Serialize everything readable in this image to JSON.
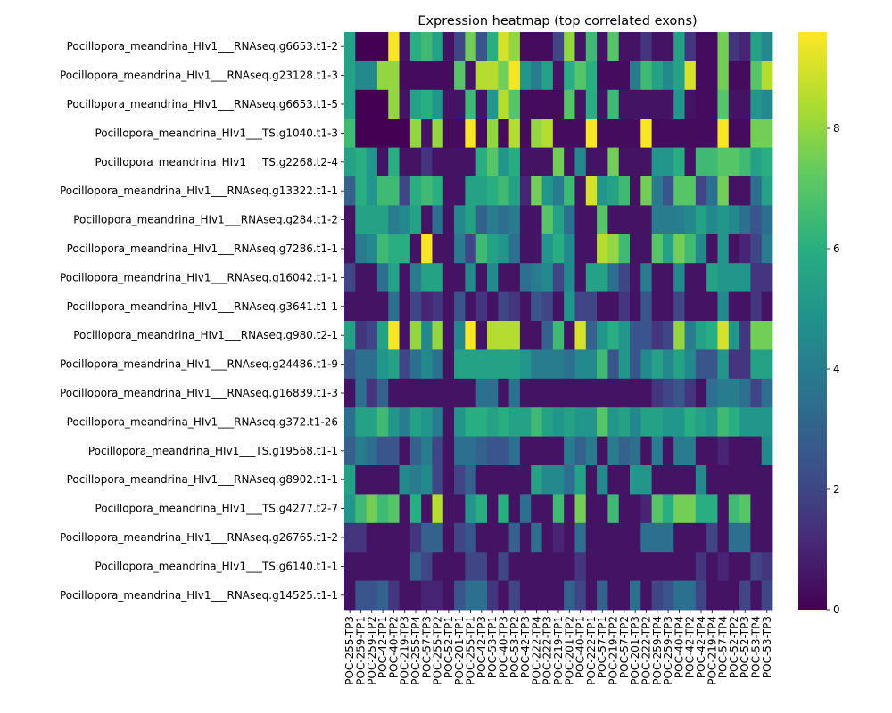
{
  "chart_data": {
    "type": "heatmap",
    "title": "Expression heatmap (top correlated exons)",
    "xlabel": "",
    "ylabel": "",
    "colormap": "viridis",
    "value_range": [
      0,
      9.6
    ],
    "colorbar_ticks": [
      0,
      2,
      4,
      6,
      8
    ],
    "x_ticks_shown": [
      "POC-255-TP3",
      "POC-259-TP1",
      "POC-259-TP2",
      "POC-42-TP1",
      "POC-40-TP2",
      "POC-219-TP3",
      "POC-255-TP4",
      "POC-57-TP3",
      "POC-255-TP2",
      "POC-52-TP1",
      "POC-201-TP1",
      "POC-255-TP1",
      "POC-42-TP3",
      "POC-53-TP1",
      "POC-40-TP3",
      "POC-53-TP2",
      "POC-42-TP3",
      "POC-222-TP4",
      "POC-222-TP3",
      "POC-219-TP1",
      "POC-201-TP2",
      "POC-40-TP1",
      "POC-222-TP1",
      "POC-57-TP1",
      "POC-219-TP2",
      "POC-57-TP2",
      "POC-201-TP3",
      "POC-222-TP2",
      "POC-259-TP4",
      "POC-259-TP3",
      "POC-40-TP4",
      "POC-42-TP2",
      "POC-42-TP4",
      "POC-219-TP4",
      "POC-57-TP4",
      "POC-52-TP2",
      "POC-52-TP3",
      "POC-53-TP4",
      "POC-53-TP3"
    ],
    "rows": [
      "Pocillopora_meandrina_HIv1___RNAseq.g6653.t1-2",
      "Pocillopora_meandrina_HIv1___RNAseq.g23128.t1-3",
      "Pocillopora_meandrina_HIv1___RNAseq.g6653.t1-5",
      "Pocillopora_meandrina_HIv1___TS.g1040.t1-3",
      "Pocillopora_meandrina_HIv1___TS.g2268.t2-4",
      "Pocillopora_meandrina_HIv1___RNAseq.g13322.t1-1",
      "Pocillopora_meandrina_HIv1___RNAseq.g284.t1-2",
      "Pocillopora_meandrina_HIv1___RNAseq.g7286.t1-1",
      "Pocillopora_meandrina_HIv1___RNAseq.g16042.t1-1",
      "Pocillopora_meandrina_HIv1___RNAseq.g3641.t1-1",
      "Pocillopora_meandrina_HIv1___RNAseq.g980.t2-1",
      "Pocillopora_meandrina_HIv1___RNAseq.g24486.t1-9",
      "Pocillopora_meandrina_HIv1___RNAseq.g16839.t1-3",
      "Pocillopora_meandrina_HIv1___RNAseq.g372.t1-26",
      "Pocillopora_meandrina_HIv1___TS.g19568.t1-1",
      "Pocillopora_meandrina_HIv1___RNAseq.g8902.t1-1",
      "Pocillopora_meandrina_HIv1___TS.g4277.t2-7",
      "Pocillopora_meandrina_HIv1___RNAseq.g26765.t1-2",
      "Pocillopora_meandrina_HIv1___TS.g6140.t1-1",
      "Pocillopora_meandrina_HIv1___RNAseq.g14525.t1-1"
    ],
    "values": [
      [
        5.5,
        0.0,
        0.0,
        0.0,
        9.5,
        0.5,
        6.0,
        6.5,
        5.5,
        0.5,
        2.0,
        7.5,
        2.5,
        6.0,
        9.0,
        8.0,
        0.3,
        0.3,
        0.3,
        2.0,
        8.0,
        0.5,
        6.5,
        0.5,
        7.0,
        0.5,
        0.5,
        1.5,
        0.5,
        0.5,
        5.5,
        1.5,
        0.3,
        0.3,
        7.5,
        1.5,
        1.0,
        5.5,
        4.5
      ],
      [
        5.5,
        4.5,
        4.5,
        8.0,
        8.0,
        0.3,
        0.3,
        0.3,
        0.3,
        0.3,
        7.0,
        0.5,
        8.5,
        8.5,
        7.5,
        9.5,
        5.0,
        4.0,
        5.5,
        0.5,
        6.0,
        7.0,
        6.0,
        0.3,
        0.3,
        0.3,
        4.0,
        6.5,
        5.5,
        4.5,
        5.5,
        9.0,
        0.3,
        0.3,
        7.5,
        0.3,
        0.3,
        7.0,
        8.5
      ],
      [
        5.5,
        0.0,
        0.0,
        0.0,
        8.0,
        0.5,
        5.5,
        6.0,
        5.0,
        0.5,
        0.5,
        6.5,
        0.5,
        5.0,
        8.5,
        7.0,
        0.3,
        0.3,
        0.3,
        0.3,
        7.0,
        0.5,
        6.0,
        0.5,
        6.5,
        0.5,
        0.5,
        0.5,
        0.5,
        0.5,
        5.0,
        0.5,
        0.3,
        0.3,
        7.0,
        0.5,
        0.5,
        5.0,
        4.5
      ],
      [
        6.5,
        0.0,
        0.0,
        0.0,
        0.0,
        0.0,
        8.0,
        0.5,
        8.0,
        0.3,
        0.3,
        9.5,
        0.3,
        8.0,
        0.3,
        8.5,
        0.3,
        8.0,
        8.5,
        0.3,
        0.3,
        0.3,
        9.5,
        0.3,
        0.3,
        0.3,
        0.3,
        9.5,
        0.3,
        0.3,
        0.3,
        0.3,
        0.3,
        0.3,
        9.5,
        0.3,
        0.3,
        7.5,
        7.5
      ],
      [
        5.5,
        6.0,
        5.0,
        0.5,
        6.0,
        0.5,
        0.5,
        1.5,
        0.5,
        0.5,
        0.5,
        0.5,
        6.0,
        7.0,
        5.0,
        6.0,
        0.5,
        0.5,
        0.5,
        7.5,
        0.5,
        4.5,
        0.5,
        0.5,
        7.5,
        0.5,
        0.5,
        0.5,
        5.0,
        5.0,
        6.0,
        0.5,
        6.5,
        6.5,
        7.0,
        7.0,
        6.5,
        5.5,
        6.0
      ],
      [
        3.0,
        6.0,
        5.0,
        6.5,
        6.5,
        2.0,
        6.0,
        6.5,
        6.0,
        0.5,
        0.5,
        5.5,
        5.5,
        6.0,
        6.5,
        5.5,
        1.0,
        7.5,
        5.0,
        4.0,
        6.5,
        0.5,
        9.0,
        5.0,
        5.5,
        6.5,
        0.5,
        7.5,
        4.0,
        2.5,
        7.0,
        7.0,
        2.0,
        3.5,
        7.5,
        0.5,
        0.5,
        3.5,
        5.5
      ],
      [
        0.5,
        5.5,
        5.5,
        5.5,
        4.0,
        4.5,
        5.5,
        0.5,
        3.5,
        0.5,
        4.5,
        5.5,
        3.0,
        4.0,
        3.5,
        4.0,
        0.5,
        0.5,
        7.0,
        5.5,
        3.5,
        0.5,
        0.5,
        7.0,
        0.5,
        0.5,
        0.5,
        0.5,
        4.0,
        4.0,
        4.0,
        4.5,
        5.5,
        4.5,
        5.0,
        4.5,
        3.5,
        2.5,
        3.5
      ],
      [
        0.5,
        4.0,
        4.5,
        6.5,
        6.0,
        6.0,
        0.5,
        9.5,
        0.5,
        0.5,
        4.0,
        2.0,
        6.5,
        5.5,
        5.0,
        3.5,
        0.5,
        0.5,
        5.0,
        6.0,
        4.5,
        0.5,
        0.5,
        8.5,
        8.0,
        6.5,
        0.5,
        0.5,
        7.0,
        5.5,
        7.5,
        6.5,
        4.5,
        0.5,
        5.0,
        0.5,
        1.0,
        2.0,
        4.0
      ],
      [
        2.0,
        0.5,
        0.5,
        3.5,
        5.5,
        0.5,
        4.0,
        5.5,
        5.5,
        0.5,
        0.5,
        4.5,
        0.5,
        4.5,
        0.5,
        0.5,
        3.5,
        4.0,
        4.5,
        2.0,
        4.5,
        0.5,
        5.5,
        5.5,
        3.5,
        2.0,
        0.5,
        4.0,
        0.5,
        0.5,
        4.5,
        0.5,
        0.5,
        5.5,
        5.0,
        5.0,
        5.0,
        1.5,
        1.5
      ],
      [
        0.5,
        0.5,
        0.5,
        0.5,
        3.5,
        0.5,
        2.0,
        1.0,
        1.5,
        0.5,
        2.5,
        0.5,
        1.5,
        0.5,
        2.0,
        1.5,
        0.5,
        2.5,
        2.0,
        0.5,
        5.0,
        2.0,
        2.0,
        0.5,
        0.5,
        1.5,
        0.5,
        2.5,
        0.5,
        0.5,
        2.0,
        0.5,
        0.5,
        0.5,
        4.5,
        0.5,
        0.5,
        1.5,
        0.5
      ],
      [
        5.5,
        1.5,
        2.0,
        5.5,
        9.5,
        0.5,
        8.0,
        4.5,
        8.0,
        0.5,
        4.5,
        9.5,
        0.5,
        8.5,
        8.5,
        8.5,
        0.5,
        0.5,
        3.0,
        6.5,
        0.5,
        9.0,
        3.0,
        5.0,
        6.0,
        5.0,
        2.5,
        2.5,
        1.5,
        2.0,
        8.0,
        4.0,
        5.5,
        6.0,
        9.0,
        5.0,
        1.5,
        7.5,
        7.5
      ],
      [
        2.5,
        3.5,
        3.5,
        5.0,
        5.5,
        2.0,
        3.5,
        4.5,
        3.5,
        0.5,
        5.5,
        5.5,
        5.5,
        5.5,
        5.5,
        5.5,
        5.0,
        4.0,
        4.0,
        4.0,
        3.5,
        4.5,
        4.5,
        6.5,
        2.5,
        5.0,
        2.5,
        4.5,
        5.5,
        4.5,
        5.5,
        4.5,
        2.5,
        2.5,
        5.0,
        1.5,
        1.5,
        5.5,
        5.5
      ],
      [
        0.5,
        3.5,
        1.5,
        3.0,
        0.5,
        0.5,
        0.5,
        0.5,
        0.5,
        0.5,
        0.5,
        0.5,
        3.5,
        3.5,
        0.5,
        3.5,
        0.5,
        0.5,
        0.5,
        0.5,
        0.5,
        0.5,
        0.5,
        0.5,
        0.5,
        0.5,
        0.5,
        0.5,
        1.5,
        2.0,
        2.5,
        1.5,
        0.5,
        3.5,
        4.0,
        4.0,
        3.5,
        2.0,
        3.5
      ],
      [
        3.5,
        5.5,
        5.5,
        6.5,
        5.0,
        4.0,
        5.5,
        5.0,
        4.0,
        0.5,
        5.0,
        6.0,
        6.0,
        5.5,
        6.0,
        5.5,
        5.5,
        6.5,
        5.5,
        5.0,
        5.5,
        5.0,
        5.0,
        7.0,
        5.0,
        5.5,
        4.5,
        5.5,
        5.5,
        5.0,
        5.0,
        6.0,
        5.5,
        5.0,
        6.5,
        6.0,
        5.0,
        5.0,
        5.0
      ],
      [
        3.0,
        4.0,
        3.5,
        2.5,
        2.5,
        0.5,
        3.0,
        4.0,
        2.0,
        0.5,
        3.5,
        3.5,
        3.0,
        2.5,
        2.5,
        3.5,
        0.5,
        0.5,
        0.5,
        0.5,
        4.0,
        3.0,
        4.0,
        0.5,
        4.0,
        3.0,
        3.5,
        0.5,
        4.0,
        0.5,
        4.0,
        4.0,
        0.5,
        0.5,
        1.0,
        0.5,
        0.5,
        0.5,
        4.5
      ],
      [
        5.5,
        0.5,
        0.5,
        0.5,
        0.5,
        4.5,
        4.0,
        4.5,
        2.0,
        0.5,
        2.0,
        3.0,
        0.5,
        0.5,
        0.5,
        0.5,
        0.5,
        5.5,
        4.5,
        4.5,
        3.5,
        5.5,
        0.5,
        4.5,
        0.5,
        0.5,
        5.0,
        5.0,
        0.5,
        0.5,
        0.5,
        0.5,
        4.5,
        0.5,
        0.5,
        0.5,
        0.5,
        0.5,
        0.5
      ],
      [
        5.0,
        6.5,
        7.5,
        6.5,
        7.0,
        0.5,
        6.0,
        0.5,
        8.5,
        0.5,
        0.5,
        5.0,
        6.0,
        0.5,
        6.0,
        0.5,
        3.5,
        0.5,
        0.5,
        6.5,
        0.5,
        7.5,
        0.5,
        0.5,
        6.5,
        0.5,
        0.5,
        1.0,
        7.0,
        6.0,
        7.5,
        7.5,
        6.0,
        6.0,
        0.5,
        6.5,
        7.0,
        0.5,
        0.5
      ],
      [
        1.5,
        1.5,
        0.5,
        0.5,
        0.5,
        0.5,
        1.5,
        3.0,
        3.0,
        0.5,
        2.0,
        2.5,
        0.5,
        0.5,
        0.5,
        3.0,
        0.5,
        3.5,
        0.5,
        1.0,
        0.5,
        3.5,
        0.5,
        0.5,
        0.5,
        0.5,
        0.5,
        3.5,
        3.5,
        3.5,
        0.5,
        0.5,
        0.5,
        2.0,
        0.5,
        3.5,
        3.5,
        0.5,
        0.5
      ],
      [
        0.5,
        0.5,
        0.5,
        0.5,
        0.5,
        0.5,
        3.0,
        2.0,
        0.5,
        0.5,
        0.5,
        2.0,
        2.0,
        0.5,
        2.0,
        0.5,
        0.5,
        0.5,
        0.5,
        0.5,
        0.5,
        1.5,
        0.5,
        0.5,
        0.5,
        0.5,
        0.5,
        0.5,
        0.5,
        0.5,
        0.5,
        0.5,
        1.5,
        0.5,
        1.0,
        0.5,
        0.5,
        2.0,
        1.5
      ],
      [
        0.5,
        2.5,
        2.5,
        3.0,
        1.5,
        0.5,
        0.5,
        1.0,
        1.0,
        0.5,
        2.5,
        3.5,
        3.5,
        1.5,
        0.5,
        2.0,
        0.5,
        0.5,
        0.5,
        0.5,
        3.0,
        2.0,
        0.5,
        3.0,
        0.5,
        0.5,
        3.5,
        0.5,
        2.0,
        2.5,
        3.5,
        3.5,
        2.0,
        0.5,
        0.5,
        0.5,
        2.0,
        0.5,
        2.0
      ]
    ]
  }
}
